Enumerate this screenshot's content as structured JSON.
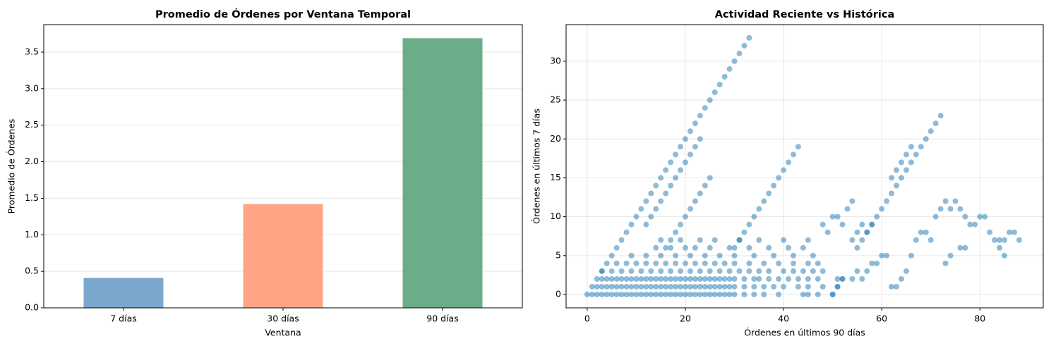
{
  "chart_data": [
    {
      "type": "bar",
      "title": "Promedio de Órdenes por Ventana Temporal",
      "xlabel": "Ventana",
      "ylabel": "Promedio de Órdenes",
      "categories": [
        "7 días",
        "30 días",
        "90 días"
      ],
      "values": [
        0.41,
        1.42,
        3.69
      ],
      "colors": [
        "#7ba7cc",
        "#ffa585",
        "#6aad88"
      ],
      "ylim": [
        0,
        3.876
      ],
      "yticks": [
        {
          "value": 0,
          "label": "0.0"
        },
        0.5,
        {
          "value": 1,
          "label": "1.0"
        },
        1.5,
        {
          "value": 2,
          "label": "2.0"
        },
        2.5,
        {
          "value": 3,
          "label": "3.0"
        },
        3.5
      ],
      "grid": "y"
    },
    {
      "type": "scatter",
      "title": "Actividad Reciente vs Histórica",
      "xlabel": "Órdenes en últimos 90 días",
      "ylabel": "Órdenes en últimos 7 días",
      "color": "#1f77b4",
      "opacity": 0.5,
      "x": [
        0,
        1,
        2,
        3,
        4,
        5,
        6,
        7,
        8,
        9,
        10,
        11,
        12,
        13,
        14,
        15,
        16,
        17,
        18,
        19,
        20,
        21,
        22,
        23,
        24,
        25,
        26,
        27,
        28,
        29,
        30,
        32,
        34,
        36,
        39,
        44,
        45,
        47,
        50,
        1,
        2,
        3,
        4,
        5,
        6,
        7,
        8,
        9,
        10,
        11,
        12,
        13,
        14,
        15,
        16,
        17,
        18,
        19,
        20,
        21,
        22,
        23,
        24,
        25,
        26,
        27,
        28,
        29,
        30,
        32,
        34,
        36,
        38,
        40,
        43,
        45,
        48,
        51,
        2,
        3,
        4,
        5,
        6,
        7,
        8,
        9,
        10,
        11,
        12,
        13,
        14,
        15,
        16,
        17,
        18,
        19,
        20,
        21,
        22,
        23,
        24,
        25,
        26,
        27,
        28,
        29,
        30,
        32,
        34,
        35,
        37,
        39,
        41,
        43,
        45,
        47,
        52,
        54,
        3,
        5,
        7,
        9,
        11,
        13,
        15,
        17,
        19,
        21,
        23,
        25,
        27,
        29,
        31,
        33,
        35,
        37,
        40,
        42,
        44,
        46,
        48,
        6,
        8,
        10,
        12,
        14,
        16,
        18,
        20,
        22,
        24,
        26,
        28,
        30,
        33,
        36,
        39,
        42,
        45,
        47,
        9,
        12,
        15,
        18,
        21,
        24,
        27,
        30,
        34,
        38,
        42,
        46,
        14,
        17,
        20,
        22,
        25,
        29,
        33,
        37,
        41,
        44,
        15,
        19,
        23,
        26,
        31,
        35,
        40,
        45,
        3,
        4,
        5,
        6,
        7,
        8,
        9,
        10,
        11,
        12,
        13,
        14,
        15,
        16,
        17,
        18,
        19,
        20,
        21,
        22,
        23,
        24,
        25,
        26,
        27,
        28,
        29,
        30,
        31,
        32,
        33,
        12,
        13,
        14,
        15,
        16,
        17,
        18,
        19,
        20,
        21,
        22,
        23,
        16,
        17,
        18,
        19,
        20,
        21,
        22,
        23,
        24,
        25,
        30,
        31,
        32,
        33,
        34,
        35,
        36,
        37,
        38,
        39,
        40,
        41,
        42,
        43,
        55,
        56,
        57,
        58,
        59,
        60,
        61,
        62,
        63,
        64,
        65,
        66,
        67,
        68,
        69,
        70,
        71,
        72,
        62,
        63,
        64,
        65,
        66,
        71,
        72,
        73,
        74,
        75,
        76,
        77,
        78,
        79,
        80,
        81,
        82,
        83,
        84,
        85,
        86,
        87,
        88,
        84,
        85,
        76,
        77,
        73,
        74,
        63,
        62,
        64,
        65,
        66,
        67,
        68,
        69,
        70,
        48,
        49,
        50,
        51,
        52,
        53,
        54,
        54,
        55,
        56,
        57,
        58,
        51,
        52,
        50,
        51,
        55,
        56,
        57,
        58,
        59,
        60,
        61
      ],
      "y": [
        0,
        0,
        0,
        0,
        0,
        0,
        0,
        0,
        0,
        0,
        0,
        0,
        0,
        0,
        0,
        0,
        0,
        0,
        0,
        0,
        0,
        0,
        0,
        0,
        0,
        0,
        0,
        0,
        0,
        0,
        0,
        0,
        0,
        0,
        0,
        0,
        0,
        0,
        0,
        1,
        1,
        1,
        1,
        1,
        1,
        1,
        1,
        1,
        1,
        1,
        1,
        1,
        1,
        1,
        1,
        1,
        1,
        1,
        1,
        1,
        1,
        1,
        1,
        1,
        1,
        1,
        1,
        1,
        1,
        1,
        1,
        1,
        1,
        1,
        1,
        1,
        1,
        1,
        2,
        2,
        2,
        2,
        2,
        2,
        2,
        2,
        2,
        2,
        2,
        2,
        2,
        2,
        2,
        2,
        2,
        2,
        2,
        2,
        2,
        2,
        2,
        2,
        2,
        2,
        2,
        2,
        2,
        2,
        2,
        2,
        2,
        2,
        2,
        2,
        2,
        2,
        2,
        2,
        3,
        3,
        3,
        3,
        3,
        3,
        3,
        3,
        3,
        3,
        3,
        3,
        3,
        3,
        3,
        3,
        3,
        3,
        3,
        3,
        3,
        3,
        3,
        4,
        4,
        4,
        4,
        4,
        4,
        4,
        4,
        4,
        4,
        4,
        4,
        4,
        4,
        4,
        4,
        4,
        4,
        4,
        5,
        5,
        5,
        5,
        5,
        5,
        5,
        5,
        5,
        5,
        5,
        5,
        6,
        6,
        6,
        6,
        6,
        6,
        6,
        6,
        6,
        6,
        7,
        7,
        7,
        7,
        7,
        7,
        7,
        7,
        3,
        4,
        5,
        6,
        7,
        8,
        9,
        10,
        11,
        12,
        13,
        14,
        15,
        16,
        17,
        18,
        19,
        20,
        21,
        22,
        23,
        24,
        25,
        26,
        27,
        28,
        29,
        30,
        31,
        32,
        33,
        9,
        10,
        11,
        12,
        13,
        14,
        15,
        16,
        17,
        18,
        19,
        20,
        6,
        7,
        8,
        9,
        10,
        11,
        12,
        13,
        14,
        15,
        6,
        7,
        8,
        9,
        10,
        11,
        12,
        13,
        14,
        15,
        16,
        17,
        18,
        19,
        6,
        7,
        8,
        9,
        10,
        11,
        12,
        13,
        14,
        15,
        16,
        17,
        18,
        19,
        20,
        21,
        22,
        23,
        15,
        16,
        17,
        18,
        19,
        10,
        11,
        12,
        11,
        12,
        11,
        10,
        9,
        9,
        10,
        10,
        8,
        7,
        7,
        7,
        8,
        8,
        7,
        6,
        5,
        6,
        6,
        4,
        5,
        1,
        1,
        2,
        3,
        5,
        7,
        8,
        8,
        7,
        9,
        8,
        10,
        10,
        9,
        11,
        12,
        7,
        8,
        9,
        8,
        9,
        2,
        2,
        0,
        1,
        3,
        2,
        3,
        4,
        4,
        5,
        5
      ],
      "xlim": [
        -4.3,
        92.9
      ],
      "xticks": [
        0,
        20,
        40,
        60,
        80
      ],
      "ylim": [
        -1.72,
        34.7
      ],
      "yticks": [
        0,
        5,
        10,
        15,
        20,
        25,
        30
      ],
      "grid": "both"
    }
  ]
}
